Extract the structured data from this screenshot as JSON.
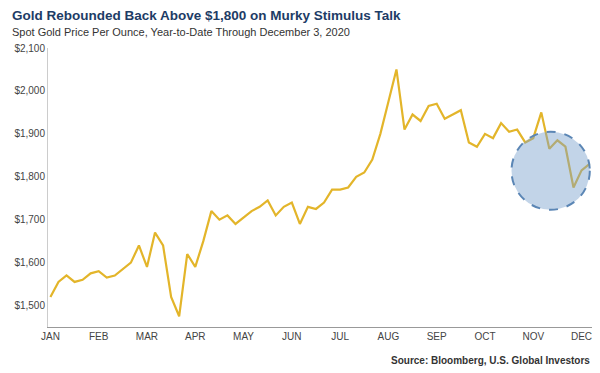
{
  "chart_data": {
    "type": "line",
    "title": "Gold Rebounded Back Above $1,800 on Murky Stimulus Talk",
    "subtitle": "Spot Gold Price Per Ounce, Year-to-Date Through December 3, 2020",
    "source": "Source: Bloomberg, U.S. Global Investors",
    "categories": [
      "JAN",
      null,
      null,
      null,
      null,
      null,
      "FEB",
      null,
      null,
      null,
      null,
      null,
      "MAR",
      null,
      null,
      null,
      null,
      null,
      "APR",
      null,
      null,
      null,
      null,
      null,
      "MAY",
      null,
      null,
      null,
      null,
      null,
      "JUN",
      null,
      null,
      null,
      null,
      null,
      "JUL",
      null,
      null,
      null,
      null,
      null,
      "AUG",
      null,
      null,
      null,
      null,
      null,
      "SEP",
      null,
      null,
      null,
      null,
      null,
      "OCT",
      null,
      null,
      null,
      null,
      null,
      "NOV",
      null,
      null,
      null,
      null,
      null,
      "DEC",
      null
    ],
    "values": [
      1520,
      1555,
      1570,
      1555,
      1560,
      1575,
      1580,
      1565,
      1570,
      1585,
      1600,
      1640,
      1590,
      1670,
      1640,
      1520,
      1475,
      1620,
      1590,
      1650,
      1720,
      1700,
      1710,
      1690,
      1705,
      1720,
      1730,
      1745,
      1710,
      1730,
      1740,
      1690,
      1730,
      1725,
      1740,
      1770,
      1770,
      1775,
      1800,
      1810,
      1840,
      1900,
      1975,
      2050,
      1910,
      1945,
      1930,
      1965,
      1970,
      1935,
      1945,
      1955,
      1880,
      1870,
      1900,
      1890,
      1925,
      1905,
      1910,
      1880,
      1890,
      1950,
      1865,
      1885,
      1870,
      1775,
      1815,
      1830
    ],
    "color": "#e3b52a",
    "ylim": [
      1450,
      2100
    ],
    "yticks": [
      {
        "value": 1500,
        "label": "$1,500"
      },
      {
        "value": 1600,
        "label": "$1,600"
      },
      {
        "value": 1700,
        "label": "$1,700"
      },
      {
        "value": 1800,
        "label": "$1,800"
      },
      {
        "value": 1900,
        "label": "$1,900"
      },
      {
        "value": 2000,
        "label": "$2,000"
      },
      {
        "value": 2100,
        "label": "$2,100"
      }
    ],
    "grid": false
  }
}
